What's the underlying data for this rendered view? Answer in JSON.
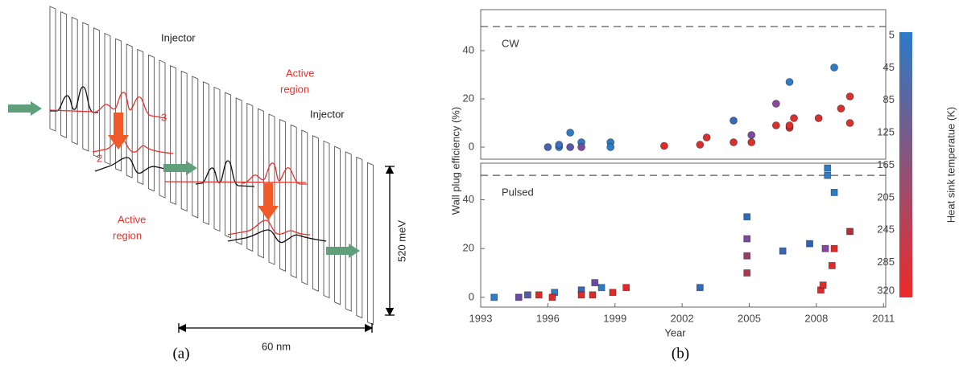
{
  "diagram": {
    "injector_left": "Injector",
    "active_region_top": [
      "Active",
      "region"
    ],
    "injector_right": "Injector",
    "level_upper": "3",
    "level_lower": "2",
    "active_region_bottom": [
      "Active",
      "region"
    ],
    "energy_scale": "520 meV",
    "length_scale": "60 nm"
  },
  "captions": [
    "(a)",
    "(b)"
  ],
  "chart_data": [
    {
      "type": "scatter",
      "marker": "circle",
      "annotation": "CW",
      "y_label": "Wall plug efficiency (%)",
      "xlim": [
        1993,
        2011.1
      ],
      "ylim": [
        -5,
        57
      ],
      "yticks": [
        0,
        20,
        40
      ],
      "reference_line": 50,
      "x": [
        1996.0,
        1996.5,
        1996.5,
        1997.0,
        1997.0,
        1997.5,
        1997.5,
        1998.8,
        1998.8,
        2001.2,
        2002.8,
        2003.1,
        2004.3,
        2004.3,
        2005.1,
        2005.1,
        2006.2,
        2006.2,
        2006.8,
        2006.8,
        2006.8,
        2007.0,
        2008.1,
        2008.8,
        2009.1,
        2009.5,
        2009.5
      ],
      "values": [
        0,
        0,
        1,
        6,
        0,
        2,
        0,
        2,
        0,
        0.5,
        1,
        4,
        11,
        2,
        5,
        2,
        18,
        9,
        27,
        8,
        9,
        12,
        12,
        33,
        16,
        21,
        10
      ],
      "colors": [
        "#4a63b0",
        "#2f7bc4",
        "#3d6fbd",
        "#2f7bc4",
        "#5a58a8",
        "#2f7bc4",
        "#7a4aa0",
        "#2f7bc4",
        "#2f7bc4",
        "#e02a2a",
        "#d6302f",
        "#d6302f",
        "#3868b4",
        "#d6302f",
        "#7a4a9e",
        "#d6302f",
        "#8a4a9a",
        "#d6302f",
        "#2f7bc4",
        "#d6302f",
        "#d6302f",
        "#d6302f",
        "#d6302f",
        "#2f7bc4",
        "#d6302f",
        "#d6302f",
        "#d6302f"
      ]
    },
    {
      "type": "scatter",
      "marker": "square",
      "annotation": "Pulsed",
      "x_label": "Year",
      "xlim": [
        1993,
        2011.1
      ],
      "ylim": [
        -4,
        55
      ],
      "xticks": [
        1993,
        1996,
        1999,
        2002,
        2005,
        2008,
        2011
      ],
      "yticks": [
        0,
        20,
        40
      ],
      "reference_line": 50,
      "x": [
        1993.6,
        1994.7,
        1995.1,
        1995.6,
        1996.3,
        1996.2,
        1997.5,
        1997.5,
        1998.1,
        1998.4,
        1998.9,
        1998.0,
        1999.5,
        2002.8,
        2004.9,
        2004.9,
        2004.9,
        2004.9,
        2006.5,
        2007.7,
        2008.2,
        2008.3,
        2008.4,
        2008.7,
        2008.5,
        2008.5,
        2008.8,
        2008.8,
        2009.5
      ],
      "values": [
        0,
        0,
        1,
        1,
        2,
        0,
        3,
        1,
        6,
        4,
        2,
        1,
        4,
        4,
        33,
        24,
        17,
        10,
        19,
        22,
        3,
        5,
        20,
        13,
        53,
        50,
        20,
        43,
        27
      ],
      "colors": [
        "#2f7bc4",
        "#6a4aa2",
        "#5a58a8",
        "#e02a2a",
        "#2f7bc4",
        "#e02a2a",
        "#3868b4",
        "#e02a2a",
        "#6a4aa2",
        "#2f7bc4",
        "#e02a2a",
        "#e02a2a",
        "#e02a2a",
        "#3868b4",
        "#2f6bb8",
        "#7a4a9e",
        "#9a3a6a",
        "#a83a50",
        "#3868b4",
        "#3060b8",
        "#e02a2a",
        "#e02a2a",
        "#8a44a4",
        "#e02a2a",
        "#2f7bc4",
        "#2f7bc4",
        "#e02a2a",
        "#2f7bc4",
        "#b03038"
      ]
    }
  ],
  "colorbar": {
    "label": "Heat sink temperatue (K)",
    "lim": [
      1,
      328
    ],
    "ticks": [
      5,
      45,
      85,
      125,
      165,
      205,
      245,
      285,
      320
    ],
    "colors": [
      "#2b7bc8",
      "#ee2a2a"
    ]
  }
}
